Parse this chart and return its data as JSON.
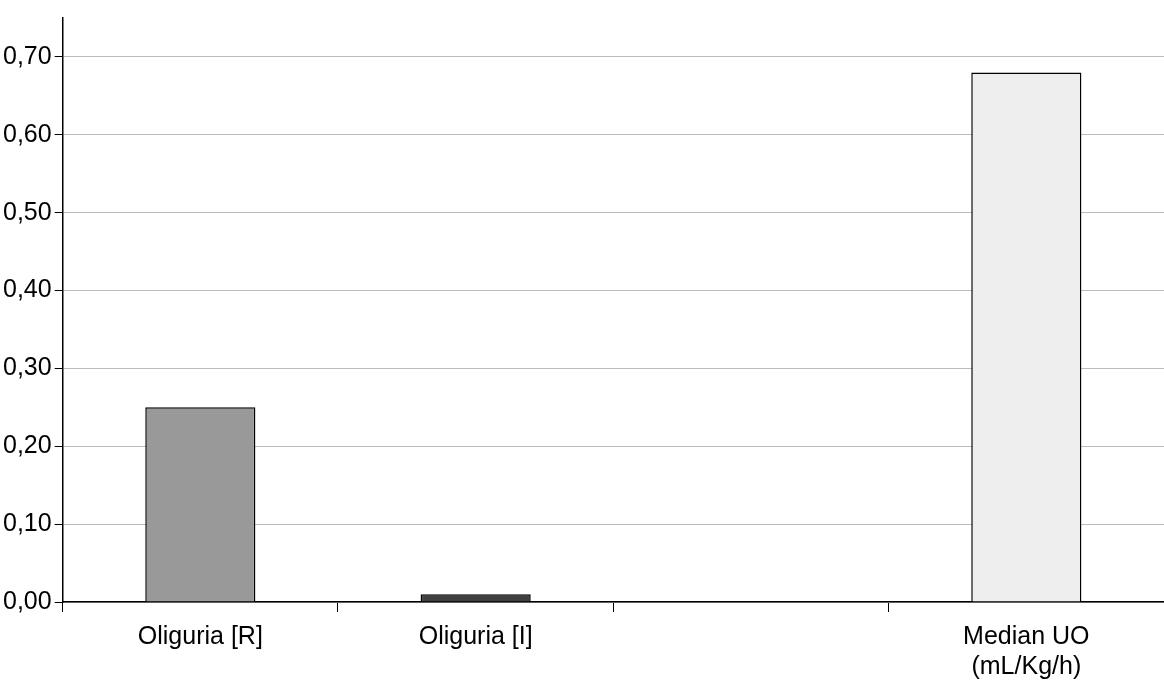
{
  "chart_data": {
    "type": "bar",
    "categories": [
      "Oliguria [R]",
      "Oliguria [I]",
      null,
      "Median UO (mL/Kg/h)"
    ],
    "values": [
      0.25,
      0.01,
      null,
      0.68
    ],
    "colors": [
      "#999999",
      "#404040",
      "#eeeeee",
      "#eeeeee"
    ],
    "ylim": [
      0,
      0.75
    ],
    "yticks": [
      {
        "value": 0,
        "label": "0,00"
      },
      {
        "value": 0.1,
        "label": "0,10"
      },
      {
        "value": 0.2,
        "label": "0,20"
      },
      {
        "value": 0.3,
        "label": "0,30"
      },
      {
        "value": 0.4,
        "label": "0,40"
      },
      {
        "value": 0.5,
        "label": "0,50"
      },
      {
        "value": 0.6,
        "label": "0,60"
      },
      {
        "value": 0.7,
        "label": "0,70"
      }
    ],
    "grid": "y",
    "legend": false
  }
}
